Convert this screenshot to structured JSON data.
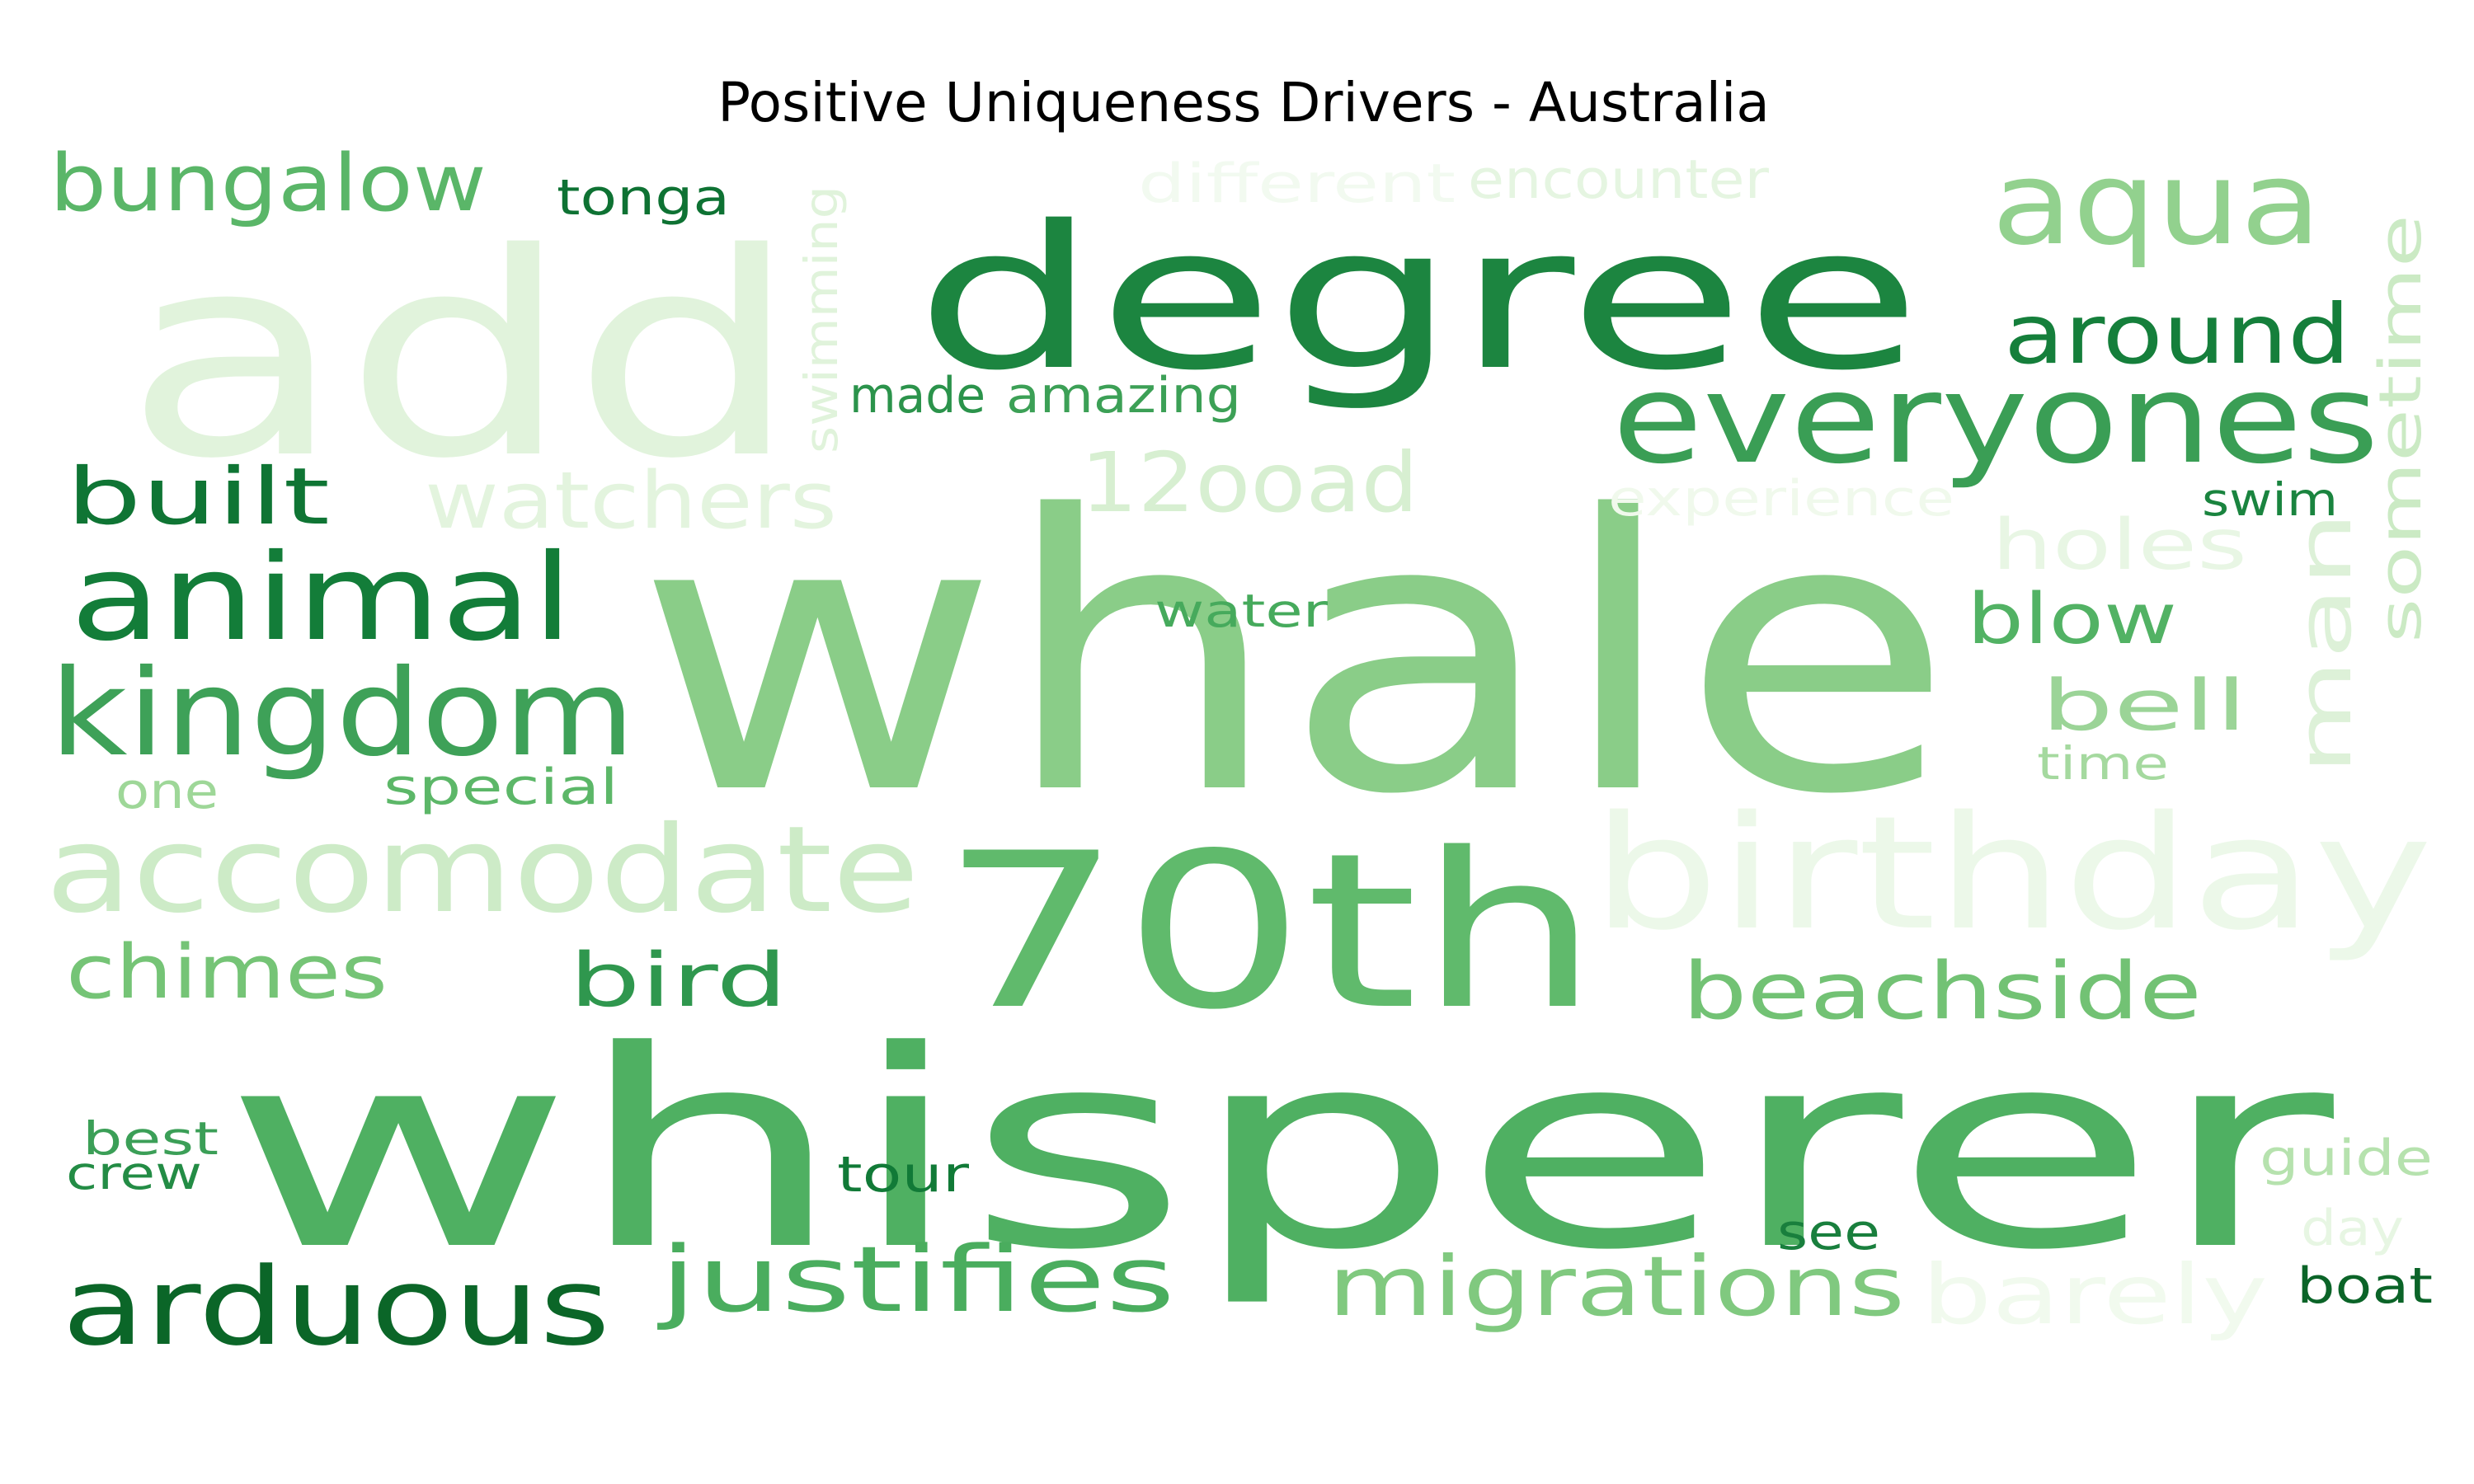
{
  "chart_data": {
    "type": "wordcloud",
    "title": "Positive Uniqueness Drivers - Australia",
    "colormap": "Greens",
    "words": [
      {
        "text": "whale",
        "color": "#8acd88"
      },
      {
        "text": "whisperer",
        "color": "#4fb062"
      },
      {
        "text": "add",
        "color": "#e1f3dc"
      },
      {
        "text": "degree",
        "color": "#1c8540"
      },
      {
        "text": "70th",
        "color": "#60ba6c"
      },
      {
        "text": "birthday",
        "color": "#ecf8e9"
      },
      {
        "text": "accomodate",
        "color": "#cdebc7"
      },
      {
        "text": "everyones",
        "color": "#3a9e55"
      },
      {
        "text": "kingdom",
        "color": "#3ea158"
      },
      {
        "text": "animal",
        "color": "#137d39"
      },
      {
        "text": "aqua",
        "color": "#92d18e"
      },
      {
        "text": "arduous",
        "color": "#0b6628"
      },
      {
        "text": "justifies",
        "color": "#4aad5e"
      },
      {
        "text": "migrations",
        "color": "#80c97f"
      },
      {
        "text": "barely",
        "color": "#f1faee"
      },
      {
        "text": "beachside",
        "color": "#72c274"
      },
      {
        "text": "bungalow",
        "color": "#5ab668"
      },
      {
        "text": "12ooad",
        "color": "#d7efd1"
      },
      {
        "text": "watchers",
        "color": "#e3f4de"
      },
      {
        "text": "around",
        "color": "#157f3b"
      },
      {
        "text": "man",
        "color": "#ddf1d8"
      },
      {
        "text": "sometime",
        "color": "#cbeac4"
      },
      {
        "text": "built",
        "color": "#0f7534"
      },
      {
        "text": "chimes",
        "color": "#75c476"
      },
      {
        "text": "bird",
        "color": "#2f974e"
      },
      {
        "text": "blow",
        "color": "#52b264"
      },
      {
        "text": "bell",
        "color": "#9bd497"
      },
      {
        "text": "holes",
        "color": "#e8f6e4"
      },
      {
        "text": "different",
        "color": "#f2faf0"
      },
      {
        "text": "encounter",
        "color": "#e5f5e1"
      },
      {
        "text": "swimming",
        "color": "#e0f3db"
      },
      {
        "text": "made",
        "color": "#2b934b"
      },
      {
        "text": "amazing",
        "color": "#3ca056"
      },
      {
        "text": "tonga",
        "color": "#0e7233"
      },
      {
        "text": "experience",
        "color": "#f0f9ec"
      },
      {
        "text": "swim",
        "color": "#1a843f"
      },
      {
        "text": "water",
        "color": "#46aa5c"
      },
      {
        "text": "special",
        "color": "#5cb768"
      },
      {
        "text": "one",
        "color": "#9ed798"
      },
      {
        "text": "time",
        "color": "#a5d99f"
      },
      {
        "text": "best",
        "color": "#3b9f57"
      },
      {
        "text": "crew",
        "color": "#238c45"
      },
      {
        "text": "tour",
        "color": "#117a37"
      },
      {
        "text": "guide",
        "color": "#b6e2ae"
      },
      {
        "text": "day",
        "color": "#e7f6e3"
      },
      {
        "text": "see",
        "color": "#197f3d"
      },
      {
        "text": "boat",
        "color": "#0b6428"
      }
    ]
  }
}
